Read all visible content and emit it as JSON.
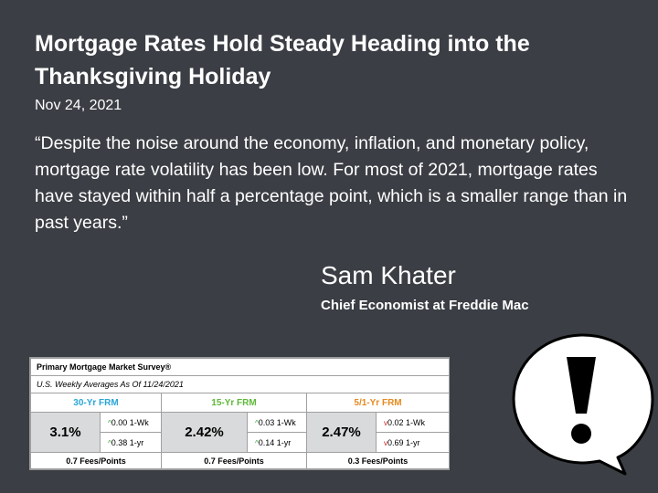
{
  "slide": {
    "title": "Mortgage Rates Hold Steady Heading into the Thanksgiving Holiday",
    "date": "Nov 24, 2021",
    "quote": "“Despite the noise around the economy, inflation, and monetary policy, mortgage rate volatility has been low. For most of 2021, mortgage rates have stayed within half a percentage point, which is a smaller range than in past years.”",
    "speaker_name": "Sam Khater",
    "speaker_role": "Chief Economist at Freddie Mac"
  },
  "survey": {
    "title": "Primary Mortgage Market Survey®",
    "subtitle": "U.S. Weekly Averages As Of 11/24/2021",
    "products": [
      {
        "name": "30-Yr FRM",
        "rate": "3.1%",
        "wk_arrow": "^",
        "wk_change": "0.00 1-Wk",
        "yr_arrow": "^",
        "yr_change": "0.38 1-yr",
        "fees": "0.7 Fees/Points"
      },
      {
        "name": "15-Yr FRM",
        "rate": "2.42%",
        "wk_arrow": "^",
        "wk_change": "0.03 1-Wk",
        "yr_arrow": "^",
        "yr_change": "0.14 1-yr",
        "fees": "0.7 Fees/Points"
      },
      {
        "name": "5/1-Yr FRM",
        "rate": "2.47%",
        "wk_arrow": "v",
        "wk_change": "0.02 1-Wk",
        "yr_arrow": "v",
        "yr_change": "0.69 1-yr",
        "fees": "0.3 Fees/Points"
      }
    ]
  },
  "icons": {
    "bubble": "exclamation-speech-bubble-icon"
  }
}
